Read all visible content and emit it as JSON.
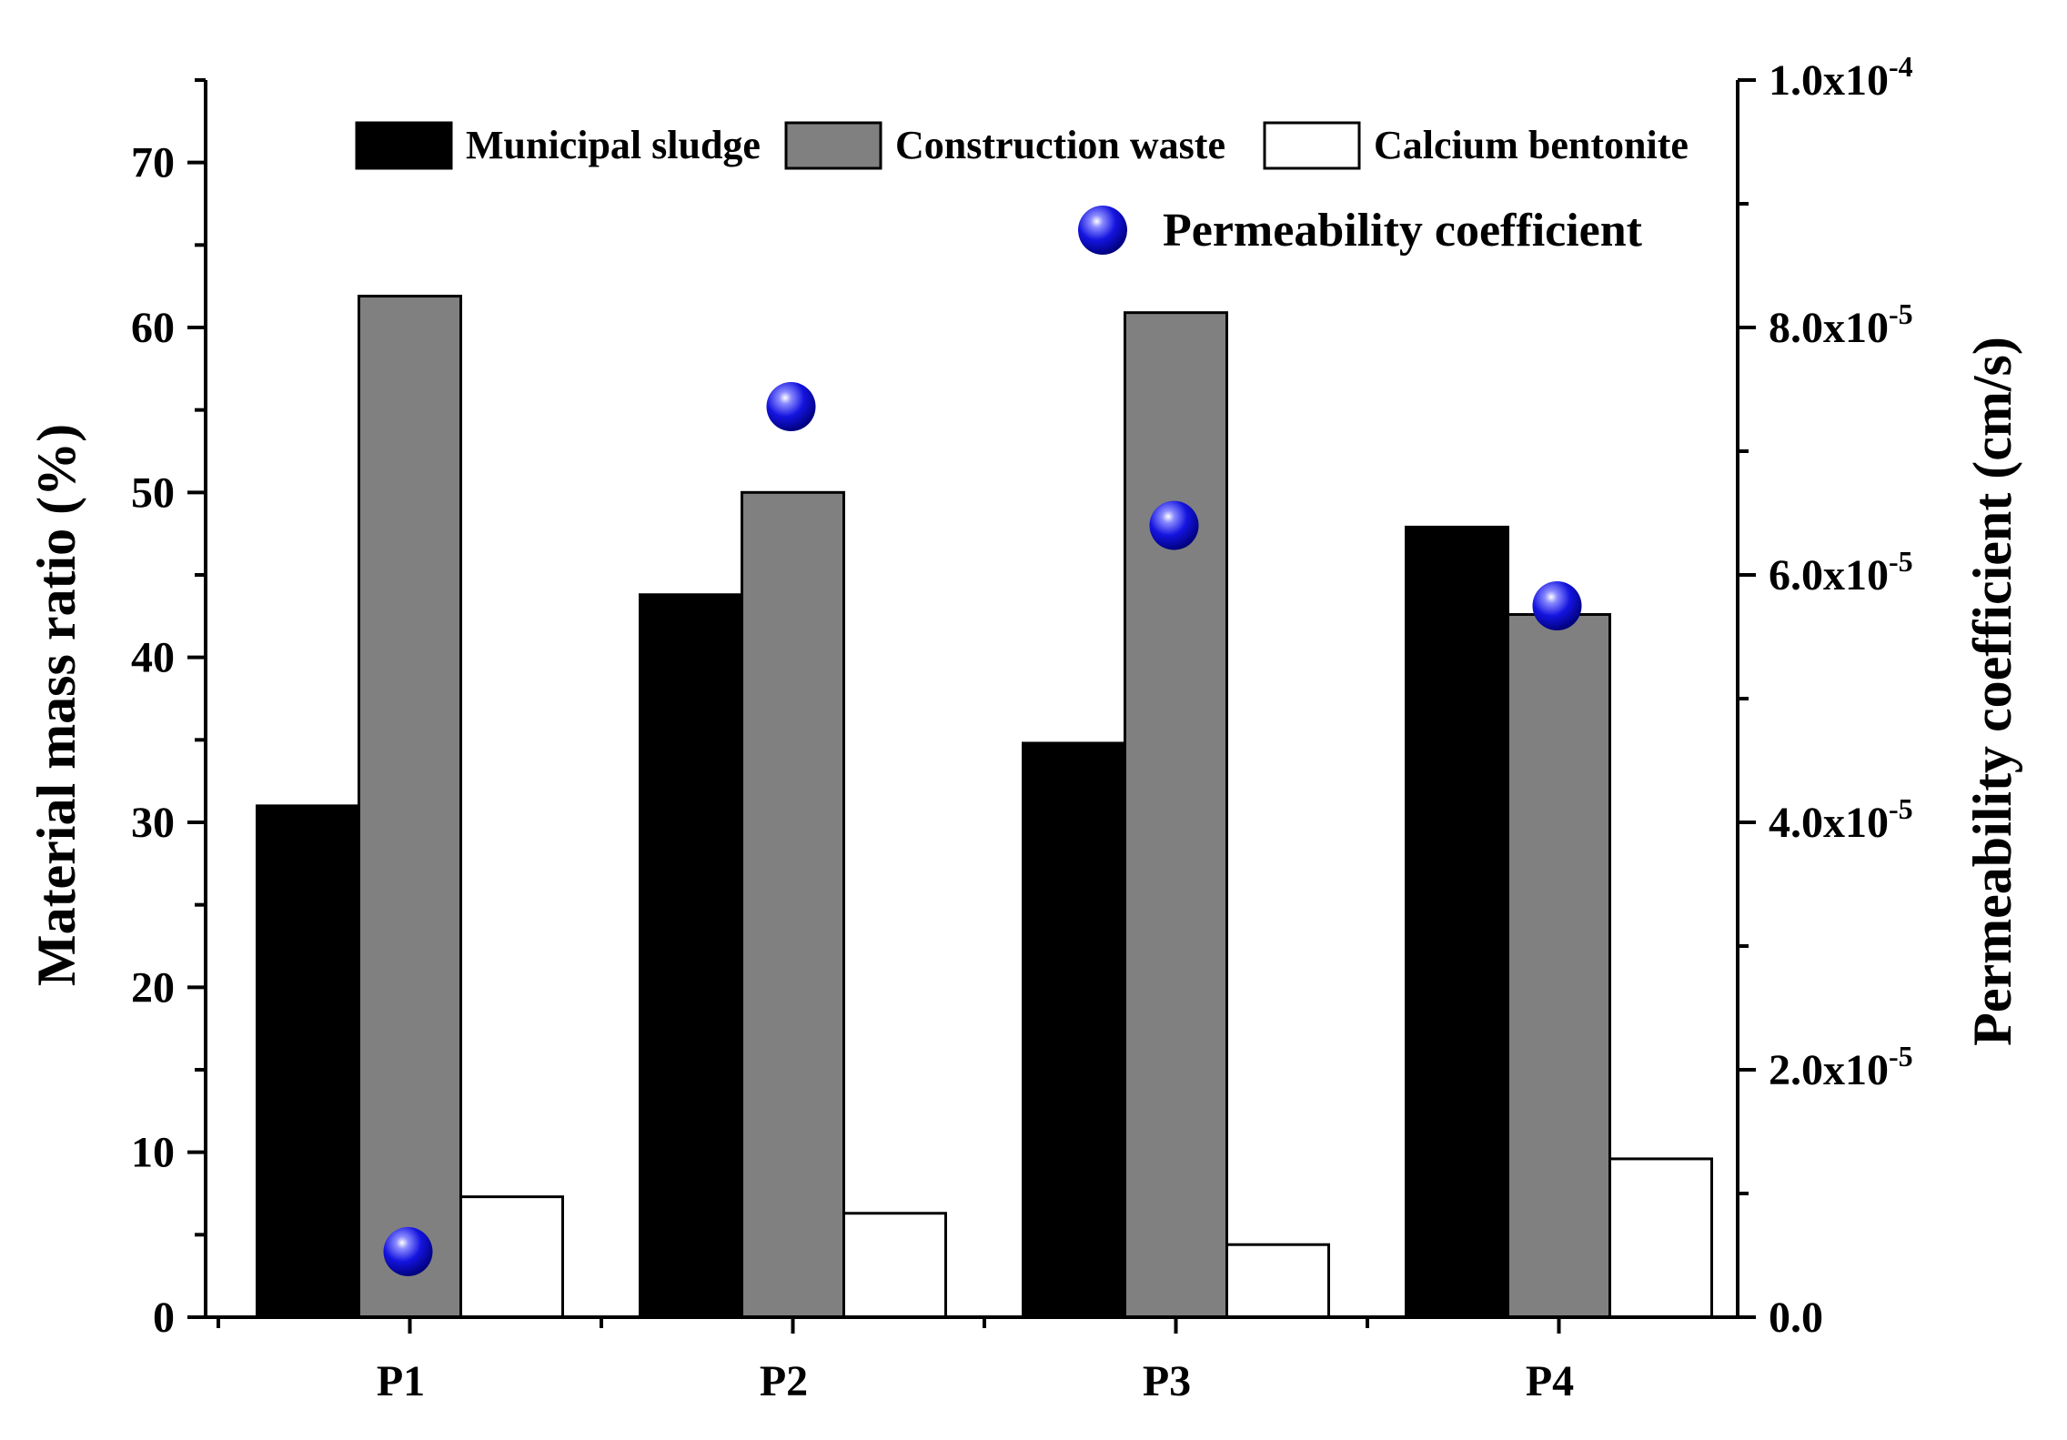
{
  "chart_data": {
    "type": "bar",
    "categories": [
      "P1",
      "P2",
      "P3",
      "P4"
    ],
    "series": [
      {
        "name": "Municipal sludge",
        "values": [
          31,
          43.8,
          34.8,
          47.9
        ],
        "color": "#000000"
      },
      {
        "name": "Construction waste",
        "values": [
          61.9,
          50,
          60.9,
          42.6
        ],
        "color": "#808080"
      },
      {
        "name": "Calcium bentonite",
        "values": [
          7.3,
          6.3,
          4.4,
          9.6
        ],
        "color": "#ffffff"
      }
    ],
    "secondary_series": {
      "name": "Permeability coefficient",
      "type": "scatter",
      "values": [
        5.3e-06,
        7.36e-05,
        6.4e-05,
        5.75e-05
      ],
      "color": "#1a1aee"
    },
    "ylabel": "Material mass ratio (%)",
    "ylim": [
      0,
      75
    ],
    "yticks": [
      "0",
      "10",
      "20",
      "30",
      "40",
      "50",
      "60",
      "70"
    ],
    "y2label": "Permeability coefficient (cm/s)",
    "y2lim": [
      0,
      0.0001
    ],
    "y2ticks": [
      {
        "mant": "0.0",
        "exp": ""
      },
      {
        "mant": "2.0x10",
        "exp": "-5"
      },
      {
        "mant": "4.0x10",
        "exp": "-5"
      },
      {
        "mant": "6.0x10",
        "exp": "-5"
      },
      {
        "mant": "8.0x10",
        "exp": "-5"
      },
      {
        "mant": "1.0x10",
        "exp": "-4"
      }
    ],
    "legend_position": "top-right"
  }
}
